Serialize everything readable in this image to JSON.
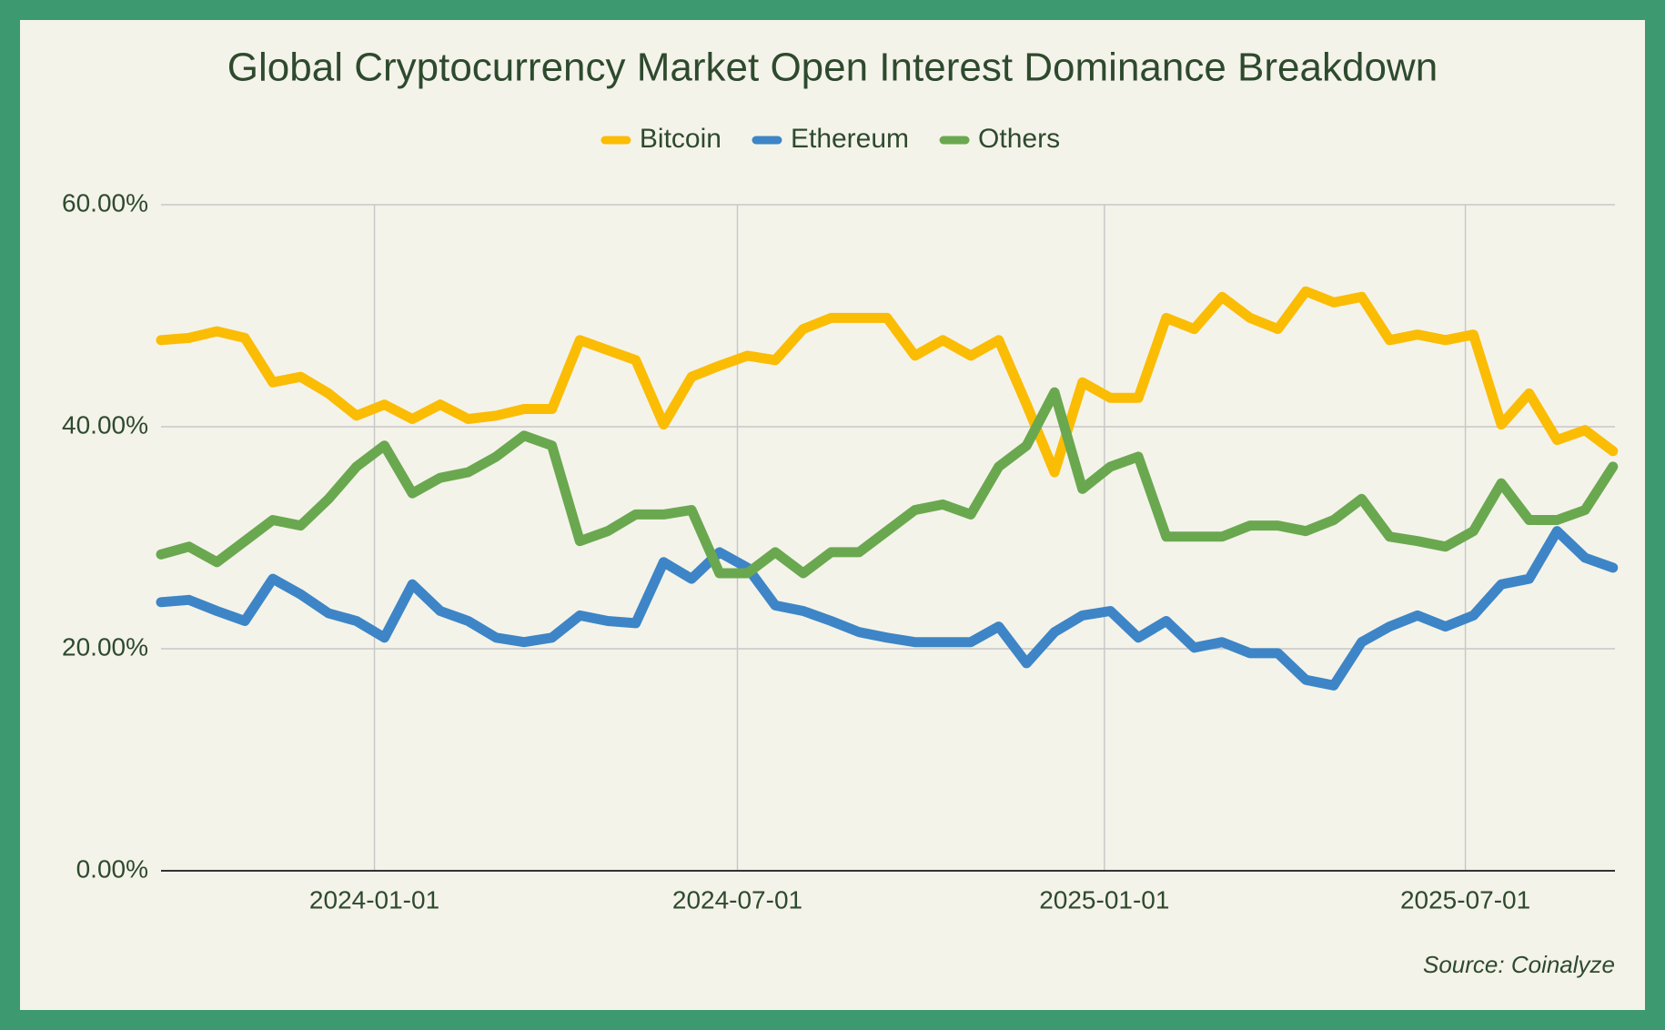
{
  "chart_data": {
    "type": "line",
    "title": "Global Cryptocurrency Market Open Interest Dominance Breakdown",
    "source": "Source: Coinalyze",
    "x": [
      "2023-09-16",
      "2023-09-30",
      "2023-10-14",
      "2023-10-28",
      "2023-11-11",
      "2023-11-25",
      "2023-12-09",
      "2023-12-23",
      "2024-01-06",
      "2024-01-20",
      "2024-02-03",
      "2024-02-17",
      "2024-03-02",
      "2024-03-16",
      "2024-03-30",
      "2024-04-13",
      "2024-04-27",
      "2024-05-11",
      "2024-05-25",
      "2024-06-08",
      "2024-06-22",
      "2024-07-06",
      "2024-07-20",
      "2024-08-03",
      "2024-08-17",
      "2024-08-31",
      "2024-09-14",
      "2024-09-28",
      "2024-10-12",
      "2024-10-26",
      "2024-11-09",
      "2024-11-23",
      "2024-12-07",
      "2024-12-21",
      "2025-01-04",
      "2025-01-18",
      "2025-02-01",
      "2025-02-15",
      "2025-03-01",
      "2025-03-15",
      "2025-03-29",
      "2025-04-12",
      "2025-04-26",
      "2025-05-10",
      "2025-05-24",
      "2025-06-07",
      "2025-06-21",
      "2025-07-05",
      "2025-07-19",
      "2025-08-02",
      "2025-08-16",
      "2025-08-30",
      "2025-09-13"
    ],
    "series": [
      {
        "name": "Bitcoin",
        "color": "#fbbc04",
        "values": [
          47.8,
          48,
          48.6,
          48,
          44,
          44.5,
          43,
          41,
          42,
          40.7,
          42,
          40.7,
          41,
          41.6,
          41.6,
          47.8,
          46.9,
          46,
          40.2,
          44.5,
          45.5,
          46.4,
          46,
          48.8,
          49.8,
          49.8,
          49.8,
          46.4,
          47.8,
          46.4,
          47.8,
          42,
          35.9,
          44,
          42.6,
          42.6,
          49.8,
          48.8,
          51.7,
          49.8,
          48.8,
          52.2,
          51.2,
          51.7,
          47.8,
          48.3,
          47.8,
          48.3,
          40.2,
          43,
          38.8,
          39.7,
          37.8
        ]
      },
      {
        "name": "Ethereum",
        "color": "#3d85c6",
        "values": [
          24.2,
          24.4,
          23.4,
          22.5,
          26.3,
          24.9,
          23.2,
          22.5,
          21,
          25.8,
          23.4,
          22.5,
          21,
          20.6,
          21,
          23,
          22.5,
          22.3,
          27.8,
          26.3,
          28.7,
          27.3,
          23.9,
          23.4,
          22.5,
          21.5,
          21,
          20.6,
          20.6,
          20.6,
          22,
          18.7,
          21.5,
          23,
          23.4,
          21,
          22.5,
          20.1,
          20.6,
          19.6,
          19.6,
          17.2,
          16.7,
          20.6,
          22,
          23,
          22,
          23,
          25.8,
          26.3,
          30.6,
          28.2,
          27.3
        ]
      },
      {
        "name": "Others",
        "color": "#6aa84f",
        "values": [
          28.5,
          29.2,
          27.8,
          29.7,
          31.6,
          31.1,
          33.5,
          36.4,
          38.3,
          34,
          35.4,
          35.9,
          37.3,
          39.2,
          38.3,
          29.7,
          30.6,
          32.1,
          32.1,
          32.5,
          26.8,
          26.8,
          28.7,
          26.8,
          28.7,
          28.7,
          30.6,
          32.5,
          33,
          32.1,
          36.4,
          38.3,
          43.1,
          34.4,
          36.4,
          37.3,
          30.1,
          30.1,
          30.1,
          31.1,
          31.1,
          30.6,
          31.6,
          33.5,
          30.1,
          29.7,
          29.2,
          30.6,
          34.9,
          31.6,
          31.6,
          32.5,
          36.4
        ]
      }
    ],
    "xlim": [
      "2023-09-16",
      "2025-09-14"
    ],
    "xticks": [
      "2024-01-01",
      "2024-07-01",
      "2025-01-01",
      "2025-07-01"
    ],
    "ylim": [
      0,
      60
    ],
    "yticks": [
      {
        "value": 0,
        "label": "0.00%"
      },
      {
        "value": 20,
        "label": "20.00%"
      },
      {
        "value": 40,
        "label": "40.00%"
      },
      {
        "value": 60,
        "label": "60.00%"
      }
    ],
    "grid": true,
    "legend": "top"
  }
}
